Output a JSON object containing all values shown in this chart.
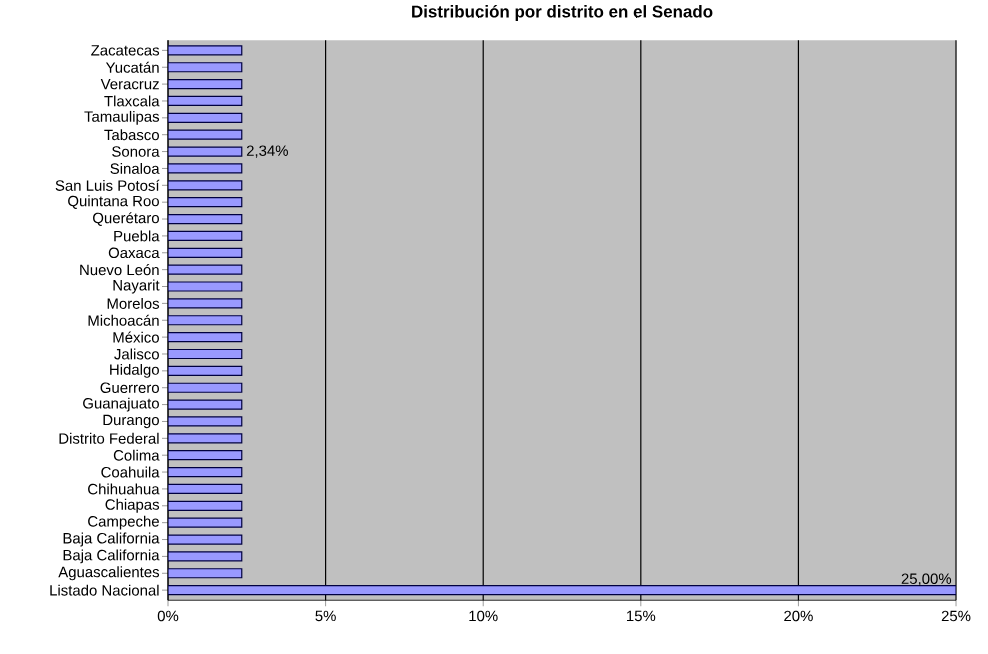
{
  "chart_data": {
    "type": "bar",
    "orientation": "horizontal",
    "title": "Distribución por distrito en el Senado",
    "categories": [
      "Zacatecas",
      "Yucatán",
      "Veracruz",
      "Tlaxcala",
      "Tamaulipas",
      "Tabasco",
      "Sonora",
      "Sinaloa",
      "San Luis Potosí",
      "Quintana Roo",
      "Querétaro",
      "Puebla",
      "Oaxaca",
      "Nuevo León",
      "Nayarit",
      "Morelos",
      "Michoacán",
      "México",
      "Jalisco",
      "Hidalgo",
      "Guerrero",
      "Guanajuato",
      "Durango",
      "Distrito Federal",
      "Colima",
      "Coahuila",
      "Chihuahua",
      "Chiapas",
      "Campeche",
      "Baja California",
      "Baja California",
      "Aguascalientes",
      "Listado Nacional"
    ],
    "values": [
      2.34,
      2.34,
      2.34,
      2.34,
      2.34,
      2.34,
      2.34,
      2.34,
      2.34,
      2.34,
      2.34,
      2.34,
      2.34,
      2.34,
      2.34,
      2.34,
      2.34,
      2.34,
      2.34,
      2.34,
      2.34,
      2.34,
      2.34,
      2.34,
      2.34,
      2.34,
      2.34,
      2.34,
      2.34,
      2.34,
      2.34,
      2.34,
      25
    ],
    "value_labels": [
      null,
      null,
      null,
      null,
      null,
      null,
      "2,34%",
      null,
      null,
      null,
      null,
      null,
      null,
      null,
      null,
      null,
      null,
      null,
      null,
      null,
      null,
      null,
      null,
      null,
      null,
      null,
      null,
      null,
      null,
      null,
      null,
      null,
      "25,00%"
    ],
    "color": "#9999ff",
    "xlim": [
      0,
      25
    ],
    "xticks": [
      {
        "value": 0,
        "label": "0%"
      },
      {
        "value": 5,
        "label": "5%"
      },
      {
        "value": 10,
        "label": "10%"
      },
      {
        "value": 15,
        "label": "15%"
      },
      {
        "value": 20,
        "label": "20%"
      },
      {
        "value": 25,
        "label": "25%"
      }
    ],
    "grid": "x"
  }
}
